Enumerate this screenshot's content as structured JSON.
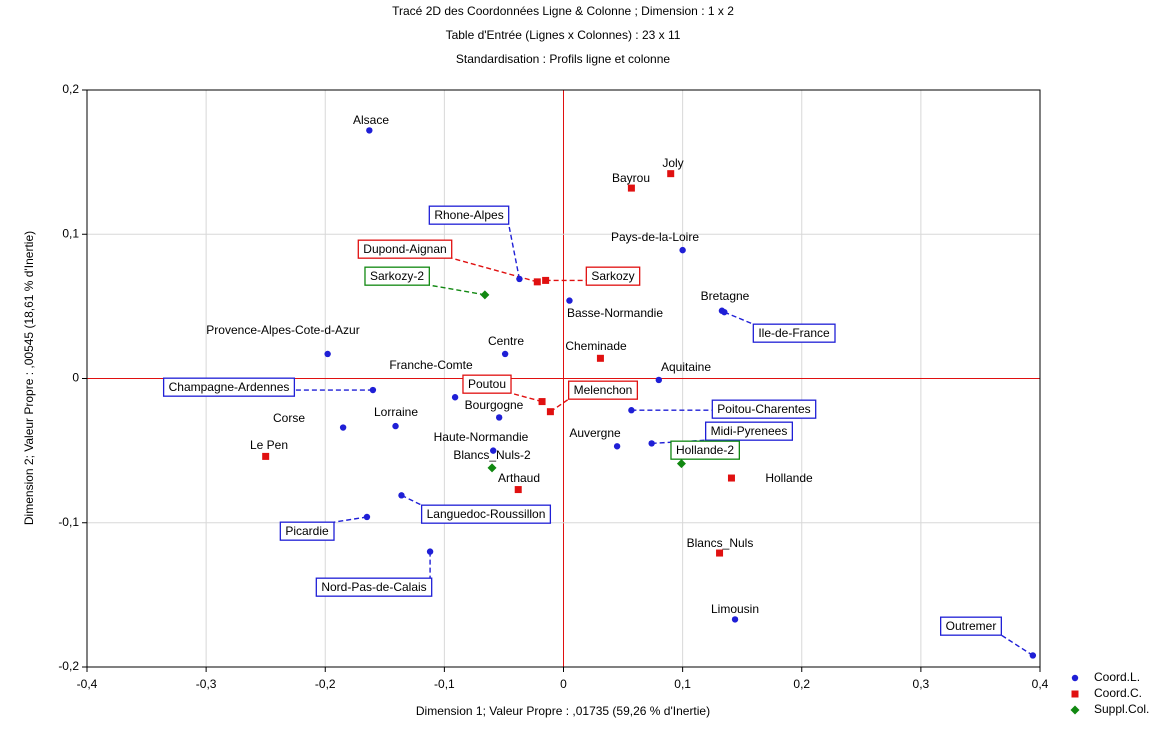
{
  "chart_data": {
    "type": "scatter",
    "title": "Tracé 2D des Coordonnées Ligne & Colonne ; Dimension :  1  x  2",
    "subtitle": "Table d'Entrée (Lignes x Colonnes) : 23 x 11",
    "subtitle2": "Standardisation : Profils ligne et colonne",
    "xlabel": "Dimension 1; Valeur Propre : ,01735 (59,26  % d'Inertie)",
    "ylabel": "Dimension 2; Valeur Propre : ,00545 (18,61  % d'Inertie)",
    "xlim": [
      -0.4,
      0.4
    ],
    "ylim": [
      -0.2,
      0.2
    ],
    "xticks": [
      {
        "value": -0.4,
        "label": "-0,4"
      },
      {
        "value": -0.3,
        "label": "-0,3"
      },
      {
        "value": -0.2,
        "label": "-0,2"
      },
      {
        "value": -0.1,
        "label": "-0,1"
      },
      0,
      {
        "value": 0.1,
        "label": "0,1"
      },
      {
        "value": 0.2,
        "label": "0,2"
      },
      {
        "value": 0.3,
        "label": "0,3"
      },
      {
        "value": 0.4,
        "label": "0,4"
      }
    ],
    "yticks": [
      {
        "value": -0.2,
        "label": "-0,2"
      },
      {
        "value": -0.1,
        "label": "-0,1"
      },
      0,
      {
        "value": 0.1,
        "label": "0,1"
      },
      {
        "value": 0.2,
        "label": "0,2"
      }
    ],
    "grid": true,
    "legend": "bottom-right",
    "series": [
      {
        "name": "Coord.L.",
        "color": "#1f1fd6",
        "marker": "circle",
        "labels": [
          "Alsace",
          "Pays-de-la-Loire",
          "Rhone-Alpes",
          "Basse-Normandie",
          "Bretagne",
          "Ile-de-France",
          "Provence-Alpes-Cote-d-Azur",
          "Centre",
          "Aquitaine",
          "Champagne-Ardennes",
          "Franche-Comte",
          "Bourgogne",
          "Poitou-Charentes",
          "Corse",
          "Lorraine",
          "Auvergne",
          "Midi-Pyrenees",
          "Haute-Normandie",
          "Languedoc-Roussillon",
          "Picardie",
          "Nord-Pas-de-Calais",
          "Limousin",
          "Outremer"
        ],
        "x": [
          -0.163,
          0.1,
          -0.037,
          0.005,
          0.133,
          0.135,
          -0.198,
          -0.049,
          0.08,
          -0.16,
          -0.091,
          -0.054,
          0.057,
          -0.185,
          -0.141,
          0.045,
          0.074,
          -0.059,
          -0.136,
          -0.165,
          -0.112,
          0.144,
          0.394
        ],
        "values": [
          0.172,
          0.089,
          0.069,
          0.054,
          0.047,
          0.046,
          0.017,
          0.017,
          -0.001,
          -0.008,
          -0.013,
          -0.027,
          -0.022,
          -0.034,
          -0.033,
          -0.047,
          -0.045,
          -0.05,
          -0.081,
          -0.096,
          -0.12,
          -0.167,
          -0.192
        ]
      },
      {
        "name": "Coord.C.",
        "color": "#e01010",
        "marker": "square",
        "labels": [
          "Joly",
          "Bayrou",
          "Dupond-Aignan",
          "Sarkozy",
          "Cheminade",
          "Poutou",
          "Melenchon",
          "Le Pen",
          "Arthaud",
          "Hollande",
          "Blancs_Nuls"
        ],
        "x": [
          0.09,
          0.057,
          -0.022,
          -0.015,
          0.031,
          -0.018,
          -0.011,
          -0.25,
          -0.038,
          0.141,
          0.131
        ],
        "values": [
          0.142,
          0.132,
          0.067,
          0.068,
          0.014,
          -0.016,
          -0.023,
          -0.054,
          -0.077,
          -0.069,
          -0.121
        ]
      },
      {
        "name": "Suppl.Col.",
        "color": "#118811",
        "marker": "diamond",
        "labels": [
          "Sarkozy-2",
          "Blancs_Nuls-2",
          "Hollande-2"
        ],
        "x": [
          -0.066,
          -0.06,
          0.099
        ],
        "values": [
          0.058,
          -0.062,
          -0.059
        ]
      }
    ]
  }
}
